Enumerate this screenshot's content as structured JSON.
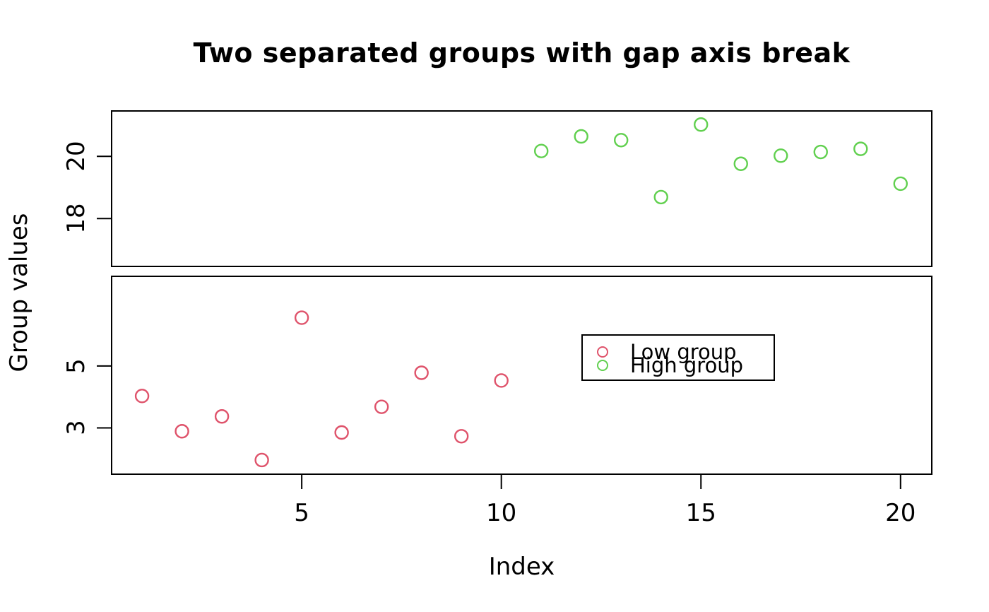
{
  "figure": {
    "background": "#ffffff",
    "text_color": "#000000"
  },
  "chart_data": {
    "type": "scatter",
    "title": "Two separated groups with gap axis break",
    "xlabel": "Index",
    "ylabel": "Group values",
    "axis_break": true,
    "grid": false,
    "xlim": [
      0.22,
      20.8
    ],
    "x_ticks": [
      5,
      10,
      15,
      20
    ],
    "panels": {
      "top": {
        "ylim": [
          16.44,
          21.48
        ],
        "y_ticks": [
          18,
          20
        ]
      },
      "bottom": {
        "ylim": [
          1.48,
          7.92
        ],
        "y_ticks": [
          3,
          5
        ]
      }
    },
    "series": [
      {
        "name": "Low group",
        "panel": "bottom",
        "color": "#DF536B",
        "marker": "open-circle",
        "x": [
          1,
          2,
          3,
          4,
          5,
          6,
          7,
          8,
          9,
          10
        ],
        "y": [
          4.03,
          2.89,
          3.37,
          1.96,
          6.56,
          2.85,
          3.68,
          4.78,
          2.73,
          4.53
        ]
      },
      {
        "name": "High group",
        "panel": "top",
        "color": "#61D04F",
        "marker": "open-circle",
        "x": [
          11,
          12,
          13,
          14,
          15,
          16,
          17,
          18,
          19,
          20
        ],
        "y": [
          20.17,
          20.64,
          20.52,
          18.69,
          21.02,
          19.76,
          20.02,
          20.14,
          20.24,
          19.12
        ]
      }
    ],
    "legend": {
      "position": "right-middle-of-bottom-panel",
      "entries": [
        "Low group",
        "High group"
      ]
    }
  }
}
